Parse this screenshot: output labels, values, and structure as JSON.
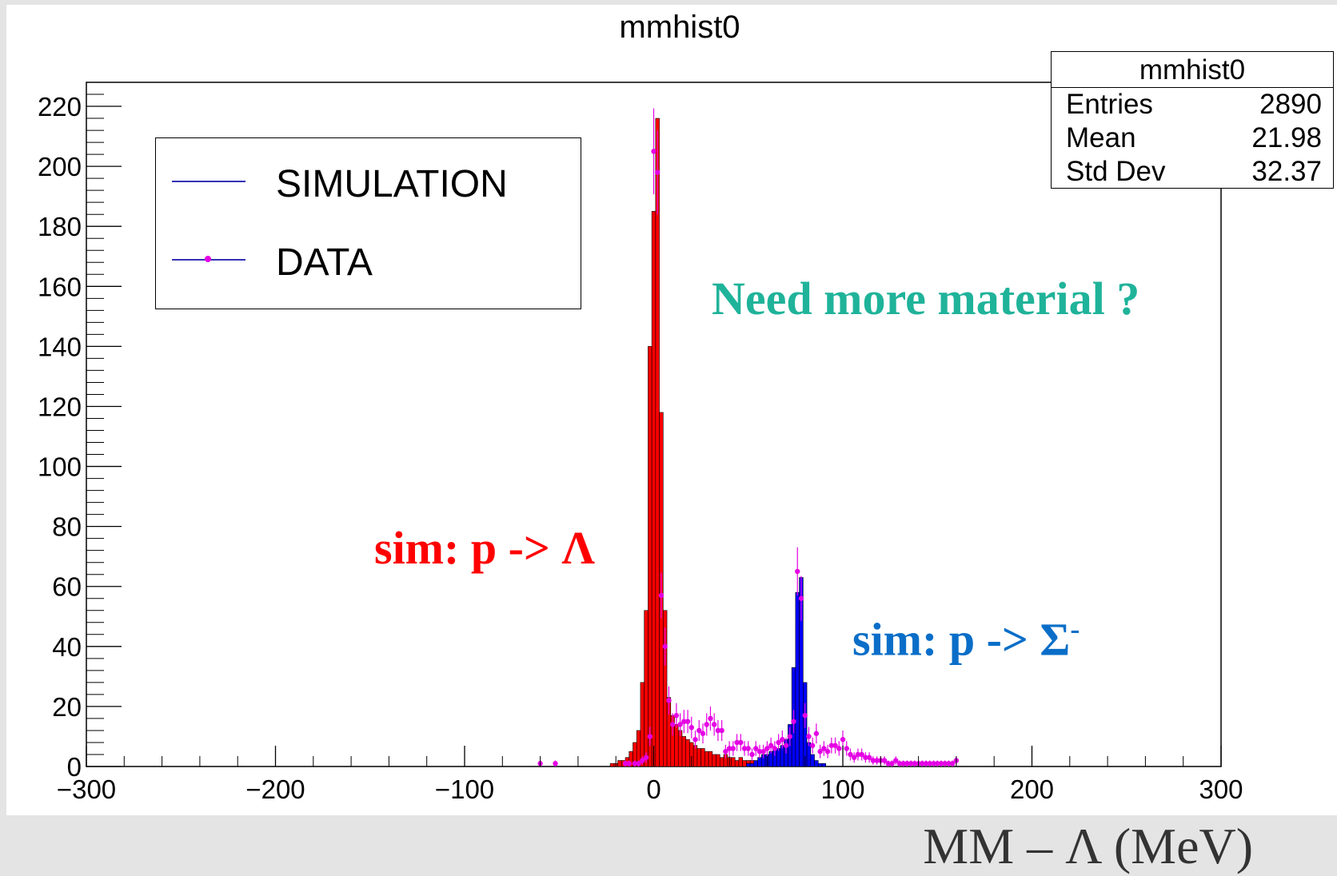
{
  "title": "mmhist0",
  "xlabel": "MM – Λ  (MeV)",
  "stats": {
    "title": "mmhist0",
    "rows": [
      {
        "label": "Entries",
        "value": "2890"
      },
      {
        "label": "Mean",
        "value": "21.98"
      },
      {
        "label": "Std Dev",
        "value": "32.37"
      }
    ]
  },
  "legend": {
    "entries": [
      {
        "label": "SIMULATION",
        "marker": "line",
        "color": "#3232b4"
      },
      {
        "label": "DATA",
        "marker": "line-with-point",
        "color": "#e400e4"
      }
    ]
  },
  "annotations": {
    "question": {
      "text": "Need more material ?",
      "color": "#1fb39a"
    },
    "lambda": {
      "text": "sim: p -> Λ",
      "color": "#ff0000"
    },
    "sigma": {
      "text": "sim: p -> Σ",
      "sup": "-",
      "color": "#0a6ec8"
    }
  },
  "colors": {
    "lambda_fill": "#ff0000",
    "sigma_fill": "#0000ff",
    "data_points": "#e400e4",
    "axes": "#000000"
  },
  "chart_data": {
    "type": "bar",
    "title": "mmhist0",
    "xlabel": "MM – Λ  (MeV)",
    "ylabel": "",
    "xlim": [
      -300,
      300
    ],
    "ylim": [
      0,
      228
    ],
    "x_ticks": [
      -300,
      -200,
      -100,
      0,
      100,
      200,
      300
    ],
    "y_ticks": [
      0,
      20,
      40,
      60,
      80,
      100,
      120,
      140,
      160,
      180,
      200,
      220
    ],
    "grid": false,
    "legend_position": "top-left",
    "bin_width": 2,
    "series": [
      {
        "name": "SIMULATION",
        "style": "filled-step",
        "color": "#ff0000",
        "x": [
          -22,
          -20,
          -18,
          -16,
          -14,
          -12,
          -10,
          -8,
          -6,
          -4,
          -2,
          0,
          2,
          4,
          6,
          8,
          10,
          12,
          14,
          16,
          18,
          20,
          22,
          24,
          26,
          28,
          30,
          32,
          34,
          36,
          38,
          40,
          42,
          44,
          46,
          48,
          50,
          52,
          54,
          56,
          58,
          60
        ],
        "values": [
          1,
          1,
          2,
          2,
          3,
          5,
          8,
          12,
          28,
          52,
          140,
          185,
          216,
          118,
          52,
          23,
          17,
          14,
          12,
          10,
          9,
          8,
          7,
          6,
          6,
          5,
          5,
          4,
          4,
          3,
          4,
          3,
          3,
          2,
          3,
          2,
          2,
          2,
          1,
          2,
          1,
          1
        ]
      },
      {
        "name": "SIMULATION",
        "style": "filled-step",
        "color": "#0000ff",
        "x": [
          50,
          52,
          54,
          56,
          58,
          60,
          62,
          64,
          66,
          68,
          70,
          72,
          74,
          76,
          78,
          80,
          82,
          84,
          86,
          88,
          90
        ],
        "values": [
          1,
          1,
          2,
          3,
          4,
          4,
          5,
          6,
          6,
          7,
          9,
          14,
          33,
          58,
          63,
          28,
          8,
          4,
          2,
          1,
          1
        ]
      },
      {
        "name": "DATA",
        "style": "points-with-errors",
        "color": "#e400e4",
        "x": [
          -60,
          -52,
          -15,
          -13,
          -10,
          -8,
          -6,
          -4,
          -2,
          0,
          2,
          4,
          6,
          8,
          10,
          12,
          14,
          16,
          18,
          20,
          22,
          24,
          26,
          28,
          30,
          32,
          34,
          36,
          38,
          40,
          42,
          44,
          46,
          48,
          50,
          52,
          54,
          56,
          58,
          60,
          62,
          64,
          66,
          68,
          70,
          72,
          74,
          76,
          78,
          80,
          82,
          84,
          86,
          88,
          90,
          92,
          94,
          96,
          98,
          100,
          102,
          104,
          106,
          108,
          110,
          112,
          114,
          116,
          118,
          120,
          122,
          124,
          126,
          128,
          130,
          132,
          134,
          136,
          138,
          140,
          142,
          144,
          146,
          148,
          150,
          152,
          154,
          156,
          158,
          160
        ],
        "values": [
          1,
          1,
          1,
          1,
          1,
          1,
          2,
          3,
          10,
          205,
          198,
          57,
          40,
          22,
          14,
          17,
          14,
          15,
          15,
          13,
          9,
          12,
          11,
          14,
          16,
          14,
          12,
          12,
          5,
          6,
          6,
          8,
          8,
          6,
          6,
          4,
          6,
          5,
          5,
          6,
          7,
          6,
          8,
          9,
          7,
          10,
          15,
          65,
          56,
          17,
          10,
          7,
          11,
          5,
          6,
          5,
          7,
          7,
          6,
          9,
          6,
          4,
          3,
          4,
          4,
          3,
          3,
          2,
          2,
          2,
          2,
          1,
          1,
          2,
          1,
          1,
          1,
          1,
          1,
          1,
          1,
          1,
          1,
          1,
          1,
          1,
          1,
          1,
          1,
          2
        ]
      }
    ],
    "stats": {
      "Entries": 2890,
      "Mean": 21.98,
      "Std Dev": 32.37
    }
  }
}
